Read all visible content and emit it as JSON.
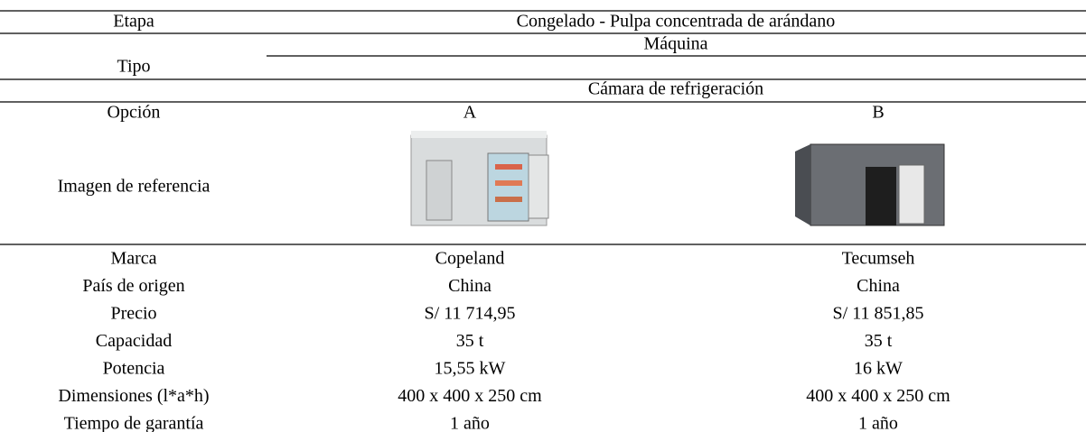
{
  "header": {
    "stage_label": "Etapa",
    "stage": "Congelado - Pulpa concentrada de arándano",
    "type_label": "Tipo",
    "type_1": "Máquina",
    "type_2": "Cámara de refrigeración",
    "option_label": "Opción",
    "options": [
      "A",
      "B"
    ],
    "image_label": "Imagen de referencia"
  },
  "table": {
    "rows": [
      [
        "Marca",
        "Copeland",
        "Tecumseh"
      ],
      [
        "País de origen",
        "China",
        "China"
      ],
      [
        "Precio",
        "S/ 11 714,95",
        "S/ 11 851,85"
      ],
      [
        "Capacidad",
        "35 t",
        "35 t"
      ],
      [
        "Potencia",
        "15,55 kW",
        "16 kW"
      ],
      [
        "Dimensiones (l*a*h)",
        "400 x 400 x 250 cm",
        "400 x 400 x 250 cm"
      ],
      [
        "Tiempo de garantía",
        "1 año",
        "1 año"
      ]
    ]
  }
}
